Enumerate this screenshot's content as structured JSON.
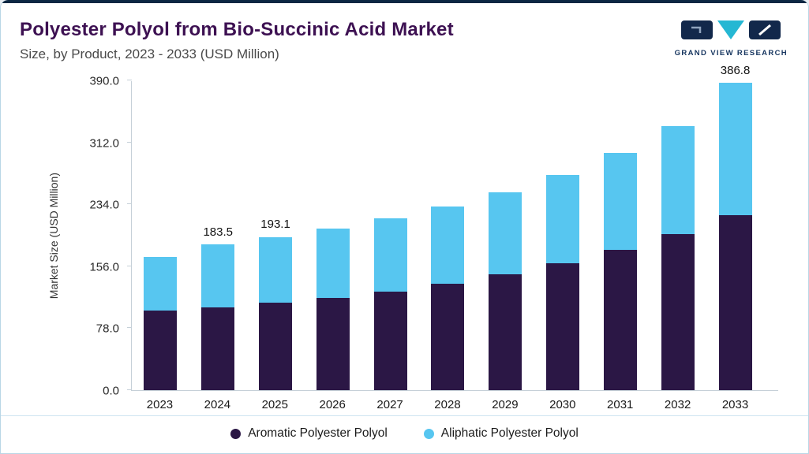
{
  "brand": {
    "name": "GRAND VIEW RESEARCH"
  },
  "chart_data": {
    "type": "bar",
    "stacked": true,
    "title": "Polyester Polyol from Bio-Succinic Acid Market",
    "subtitle": "Size, by Product, 2023 - 2033 (USD Million)",
    "ylabel": "Market Size (USD Million)",
    "xlabel": "",
    "ylim": [
      0,
      390
    ],
    "yticks": [
      0,
      78,
      156,
      234,
      312,
      390
    ],
    "grid": false,
    "legend_position": "bottom",
    "categories": [
      "2023",
      "2024",
      "2025",
      "2026",
      "2027",
      "2028",
      "2029",
      "2030",
      "2031",
      "2032",
      "2033"
    ],
    "series": [
      {
        "name": "Aromatic Polyester Polyol",
        "color": "#2b1745",
        "values": [
          100,
          104,
          110,
          116,
          124,
          134,
          146,
          160,
          177,
          197,
          220
        ]
      },
      {
        "name": "Aliphatic Polyester Polyol",
        "color": "#57c6f0",
        "values": [
          68,
          79.5,
          83.1,
          87,
          92,
          97,
          103,
          111,
          122,
          136,
          166.8
        ]
      }
    ],
    "annotations": [
      {
        "category": "2024",
        "text": "183.5"
      },
      {
        "category": "2025",
        "text": "193.1"
      },
      {
        "category": "2033",
        "text": "386.8"
      }
    ]
  }
}
